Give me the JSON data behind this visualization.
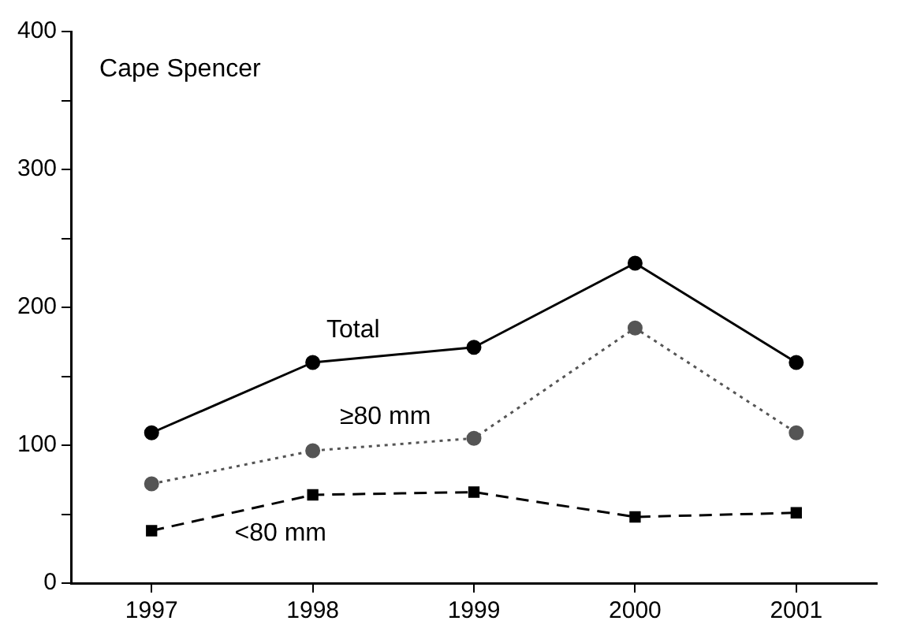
{
  "chart_data": {
    "type": "line",
    "categories": [
      "1997",
      "1998",
      "1999",
      "2000",
      "2001"
    ],
    "series": [
      {
        "name": "Total",
        "color": "#000000",
        "values": [
          109,
          160,
          171,
          232,
          160
        ],
        "marker": "circle",
        "line_style": "solid"
      },
      {
        "name": "≥80 mm",
        "color": "#555555",
        "values": [
          72,
          96,
          105,
          185,
          109
        ],
        "marker": "circle",
        "line_style": "dotted"
      },
      {
        "name": "<80 mm",
        "color": "#000000",
        "values": [
          38,
          64,
          66,
          48,
          51
        ],
        "marker": "square",
        "line_style": "dashed"
      }
    ],
    "ylim": [
      0,
      400
    ],
    "yticks": [
      0,
      {
        "value": 50,
        "label": null
      },
      100,
      {
        "value": 150,
        "label": null
      },
      200,
      {
        "value": 250,
        "label": null
      },
      300,
      {
        "value": 350,
        "label": null
      },
      400
    ],
    "annotations": [
      "Cape Spencer"
    ],
    "grid": false,
    "legend": false
  }
}
